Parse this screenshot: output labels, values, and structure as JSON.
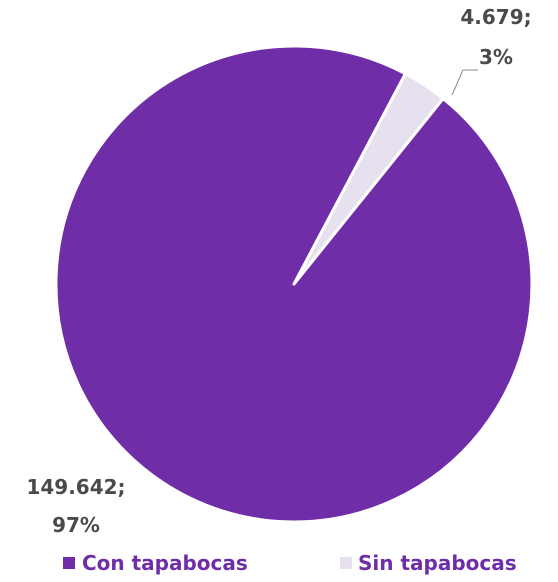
{
  "chart_data": {
    "type": "pie",
    "title": "",
    "categories": [
      "Con tapabocas",
      "Sin tapabocas"
    ],
    "values": [
      149642,
      4679
    ],
    "value_labels": [
      "149.642;",
      "4.679;"
    ],
    "percent_labels": [
      "97%",
      "3%"
    ],
    "colors": [
      "#6f2da8",
      "#e7e0ef"
    ],
    "legend_position": "bottom"
  }
}
